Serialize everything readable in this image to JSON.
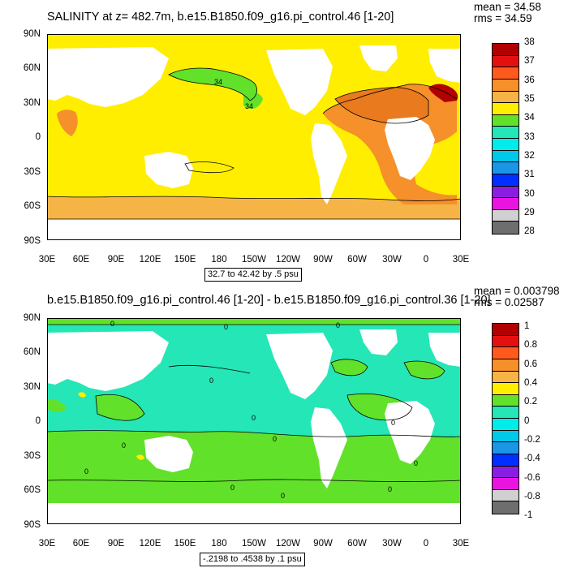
{
  "chart_data": [
    {
      "type": "heatmap",
      "chart_kind": "filled contour map",
      "title": "SALINITY at z= 482.7m, b.e15.B1850.f09_g16.pi_control.46 [1-20]",
      "mean_label": "mean = 34.58",
      "rms_label": "rms = 34.59",
      "x_tick_labels": [
        "30E",
        "60E",
        "90E",
        "120E",
        "150E",
        "180",
        "150W",
        "120W",
        "90W",
        "60W",
        "30W",
        "0",
        "30E"
      ],
      "y_tick_labels": [
        "90N",
        "60N",
        "30N",
        "0",
        "30S",
        "60S",
        "90S"
      ],
      "xlim_deg": [
        30,
        390
      ],
      "ylim_deg": [
        -90,
        90
      ],
      "contour_info": "32.7 to 42.42 by .5 psu",
      "contour_labels": [
        "34",
        "34"
      ],
      "colorbar_labels": [
        "38",
        "37",
        "36",
        "35",
        "34",
        "33",
        "32",
        "31",
        "30",
        "29",
        "28"
      ],
      "colorbar_colors": [
        "#b00000",
        "#e41010",
        "#ff5a1e",
        "#f5902a",
        "#f6b447",
        "#ffee00",
        "#62e12a",
        "#25e6b6",
        "#00ecea",
        "#00c8e8",
        "#1a96e6",
        "#0030ff",
        "#8a1ee0",
        "#ea14e0",
        "#d0d0d0",
        "#6e6e6e"
      ],
      "regions": [
        {
          "name": "global ocean background",
          "color": "#ffee00"
        },
        {
          "name": "Atlantic high salinity",
          "color": "#f5902a"
        },
        {
          "name": "Mediterranean outflow",
          "color": "#b00000"
        },
        {
          "name": "Arabian Sea",
          "color": "#f5902a"
        },
        {
          "name": "Southern Ocean belt",
          "color": "#f6b447"
        },
        {
          "name": "North Pacific low salinity",
          "color": "#62e12a"
        }
      ]
    },
    {
      "type": "heatmap",
      "chart_kind": "filled contour map",
      "title": "b.e15.B1850.f09_g16.pi_control.46 [1-20] - b.e15.B1850.f09_g16.pi_control.36 [1-20]",
      "mean_label": "mean = 0.003798",
      "rms_label": "rms = 0.02587",
      "x_tick_labels": [
        "30E",
        "60E",
        "90E",
        "120E",
        "150E",
        "180",
        "150W",
        "120W",
        "90W",
        "60W",
        "30W",
        "0",
        "30E"
      ],
      "y_tick_labels": [
        "90N",
        "60N",
        "30N",
        "0",
        "30S",
        "60S",
        "90S"
      ],
      "xlim_deg": [
        30,
        390
      ],
      "ylim_deg": [
        -90,
        90
      ],
      "contour_info": "-.2198 to .4538 by .1 psu",
      "contour_labels": [
        "0",
        "0",
        "0",
        "0",
        "0",
        "0",
        "0",
        "0",
        "0",
        "0",
        "0",
        "0",
        "0"
      ],
      "colorbar_labels": [
        "1",
        "0.8",
        "0.6",
        "0.4",
        "0.2",
        "0",
        "-0.2",
        "-0.4",
        "-0.6",
        "-0.8",
        "-1"
      ],
      "colorbar_colors": [
        "#b00000",
        "#e41010",
        "#ff5a1e",
        "#f5902a",
        "#f6b447",
        "#ffee00",
        "#62e12a",
        "#25e6b6",
        "#00ecea",
        "#00c8e8",
        "#1a96e6",
        "#0030ff",
        "#8a1ee0",
        "#ea14e0",
        "#d0d0d0",
        "#6e6e6e"
      ],
      "regions": [
        {
          "name": "global ocean background",
          "color": "#25e6b6"
        },
        {
          "name": "positive anomaly areas",
          "color": "#62e12a"
        },
        {
          "name": "local maxima",
          "color": "#ffee00"
        }
      ]
    }
  ]
}
